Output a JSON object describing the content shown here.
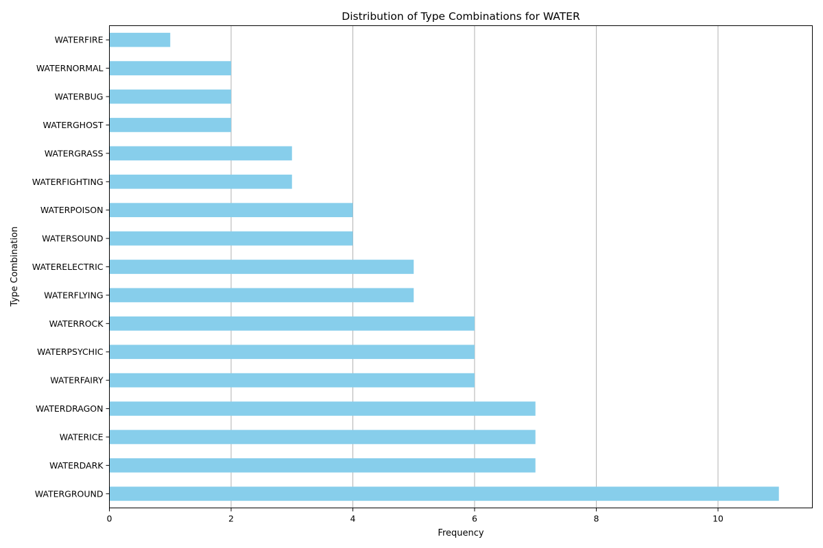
{
  "chart_data": {
    "type": "bar",
    "orientation": "horizontal",
    "title": "Distribution of Type Combinations for WATER",
    "xlabel": "Frequency",
    "ylabel": "Type Combination",
    "xlim": [
      0,
      11.55
    ],
    "xticks": [
      0,
      2,
      4,
      6,
      8,
      10
    ],
    "grid": "x",
    "bar_color": "#87ceeb",
    "categories": [
      "WATERGROUND",
      "WATERDARK",
      "WATERICE",
      "WATERDRAGON",
      "WATERFAIRY",
      "WATERPSYCHIC",
      "WATERROCK",
      "WATERFLYING",
      "WATERELECTRIC",
      "WATERSOUND",
      "WATERPOISON",
      "WATERFIGHTING",
      "WATERGRASS",
      "WATERGHOST",
      "WATERBUG",
      "WATERNORMAL",
      "WATERFIRE"
    ],
    "values": [
      11,
      7,
      7,
      7,
      6,
      6,
      6,
      5,
      5,
      4,
      4,
      3,
      3,
      2,
      2,
      2,
      1
    ]
  }
}
